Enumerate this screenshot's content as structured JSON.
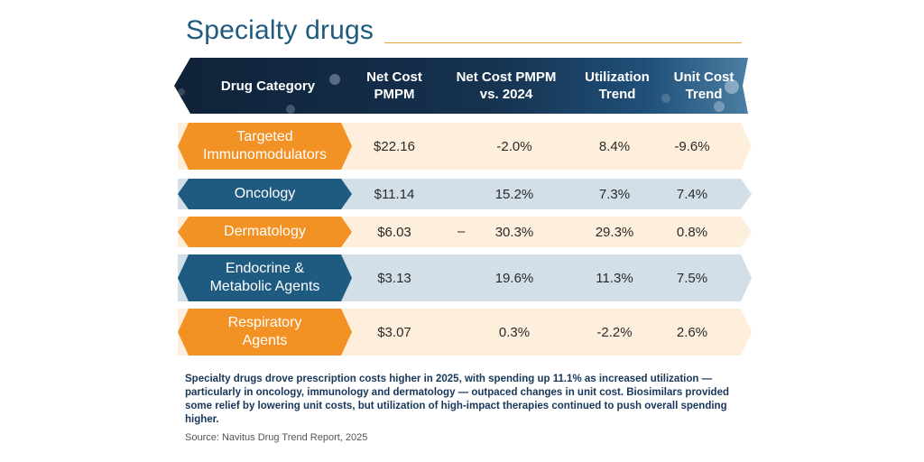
{
  "title": "Specialty drugs",
  "colors": {
    "title": "#1f5b80",
    "accent_rule": "#f0a53a",
    "orange_label": "#f39224",
    "blue_label": "#1f5b80",
    "orange_row": "#fdefdc",
    "blue_row": "#d3dfe8",
    "note": "#17375a"
  },
  "chart_data": {
    "type": "table",
    "columns": [
      "Drug Category",
      "Net Cost\nPMPM",
      "Net Cost PMPM\nvs. 2024",
      "Utilization\nTrend",
      "Unit Cost\nTrend"
    ],
    "rows": [
      {
        "category": "Targeted\nImmunomodulators",
        "net_cost_pmpm": "$22.16",
        "vs_2024": "-2.0%",
        "utilization_trend": "8.4%",
        "unit_cost_trend": "-9.6%",
        "style": "orange"
      },
      {
        "category": "Oncology",
        "net_cost_pmpm": "$11.14",
        "vs_2024": "15.2%",
        "utilization_trend": "7.3%",
        "unit_cost_trend": "7.4%",
        "style": "blue"
      },
      {
        "category": "Dermatology",
        "net_cost_pmpm": "$6.03",
        "vs_2024": "30.3%",
        "vs_2024_prefix": "–",
        "utilization_trend": "29.3%",
        "unit_cost_trend": "0.8%",
        "style": "orange"
      },
      {
        "category": "Endocrine &\nMetabolic Agents",
        "net_cost_pmpm": "$3.13",
        "vs_2024": "19.6%",
        "utilization_trend": "11.3%",
        "unit_cost_trend": "7.5%",
        "style": "blue"
      },
      {
        "category": "Respiratory\nAgents",
        "net_cost_pmpm": "$3.07",
        "vs_2024": "0.3%",
        "utilization_trend": "-2.2%",
        "unit_cost_trend": "2.6%",
        "style": "orange"
      }
    ]
  },
  "note": "Specialty drugs drove prescription costs higher in 2025, with spending up 11.1% as increased utilization — particularly in oncology, immunology and dermatology — outpaced changes in unit cost. Biosimilars provided some relief by lowering unit costs, but utilization of high-impact therapies continued to push overall spending higher.",
  "source": "Source: Navitus Drug Trend Report, 2025"
}
